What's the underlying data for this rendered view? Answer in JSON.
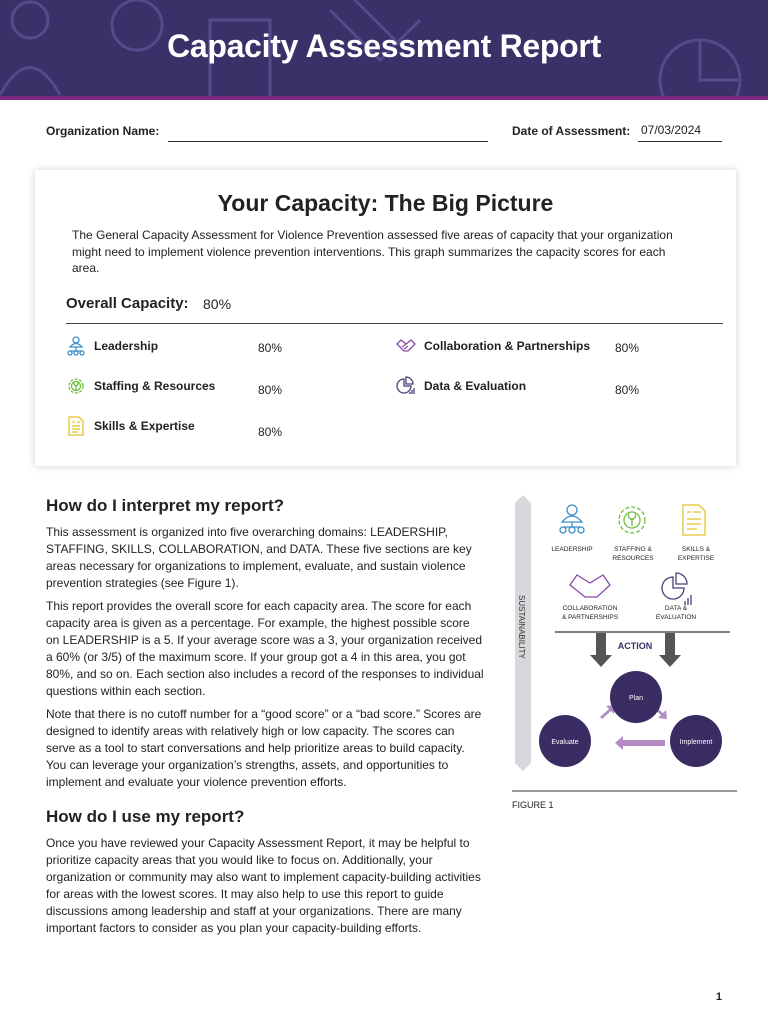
{
  "header": {
    "title": "Capacity Assessment Report"
  },
  "form": {
    "org_label": "Organization Name:",
    "org_value": "",
    "date_label": "Date of Assessment:",
    "date_value": "07/03/2024"
  },
  "card": {
    "title": "Your Capacity: The Big Picture",
    "intro": "The General Capacity Assessment for Violence Prevention assessed five areas of capacity that your organization might need to implement violence prevention interventions. This graph summarizes the capacity scores for each area.",
    "overall_label": "Overall Capacity:",
    "overall_value": "80%",
    "areas": [
      {
        "label": "Leadership",
        "value": "80%",
        "icon": "leadership-icon",
        "color": "#3a8fc8"
      },
      {
        "label": "Staffing & Resources",
        "value": "80%",
        "icon": "gear-plant-icon",
        "color": "#6cbf3f"
      },
      {
        "label": "Skills & Expertise",
        "value": "80%",
        "icon": "document-icon",
        "color": "#e8c22a"
      },
      {
        "label": "Collaboration & Partnerships",
        "value": "80%",
        "icon": "handshake-icon",
        "color": "#8a4aa8"
      },
      {
        "label": "Data & Evaluation",
        "value": "80%",
        "icon": "pie-chart-icon",
        "color": "#4a3f7a"
      }
    ]
  },
  "interpret": {
    "heading": "How do I interpret my report?",
    "paragraphs": [
      "This assessment is organized into five overarching domains: LEADERSHIP, STAFFING, SKILLS, COLLABORATION, and DATA. These five sections are key areas necessary for organizations to implement, evaluate, and sustain violence prevention strategies (see Figure 1).",
      "This report provides the overall score for each capacity area. The score for each capacity area is given as a percentage. For example, the highest possible score on LEADERSHIP is a 5. If your average score was a 3, your organization received a 60% (or 3/5) of the maximum score. If your group got a 4 in this area, you got 80%, and so on. Each section also includes a record of the responses to individual questions within each section.",
      "Note that there is no cutoff number for a “good score” or a “bad score.” Scores are designed to identify areas with relatively high or low capacity. The scores can serve as a tool to start conversations and help prioritize areas to build capacity. You can leverage your organization’s strengths, assets, and opportunities to implement and evaluate your violence prevention efforts."
    ]
  },
  "use": {
    "heading": "How do I use my report?",
    "paragraph": "Once you have reviewed your Capacity Assessment Report, it may be helpful to prioritize capacity areas that you would like to focus on. Additionally, your organization or community may also want to implement capacity-building activities for areas with the lowest scores. It may also help to use this report to guide discussions among leadership and staff at your organizations. There are many important factors to consider as you plan your capacity-building efforts."
  },
  "figure": {
    "sustainability": "SUSTAINABILITY",
    "leadership": "LEADERSHIP",
    "staffing1": "STAFFING &",
    "staffing2": "RESOURCES",
    "skills1": "SKILLS &",
    "skills2": "EXPERTISE",
    "collab1": "COLLABORATION",
    "collab2": "& PARTNERSHIPS",
    "data1": "DATA &",
    "data2": "EVALUATION",
    "action": "ACTION",
    "plan": "Plan",
    "implement": "Implement",
    "evaluate": "Evaluate",
    "caption": "FIGURE 1"
  },
  "page": {
    "number": "1"
  },
  "colors": {
    "header": "#3a3169",
    "accent": "#7a2a7d",
    "circle": "#3a2d63",
    "arrow": "#b48cc4"
  }
}
